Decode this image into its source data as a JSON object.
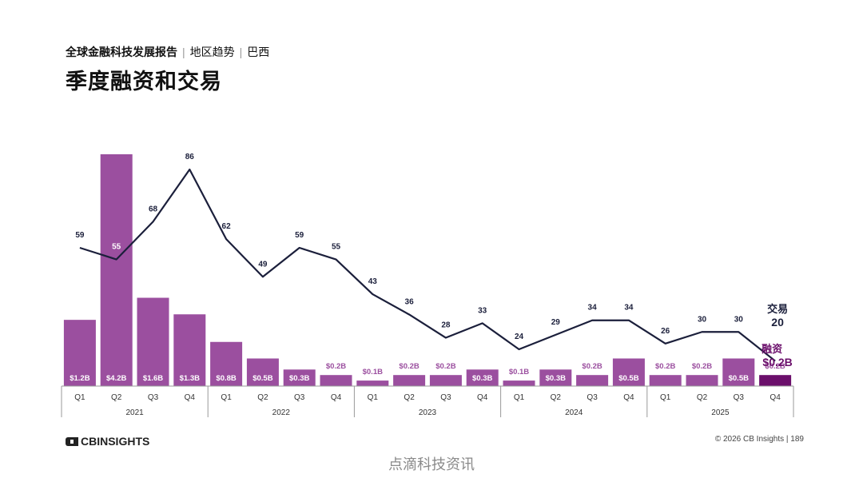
{
  "header": {
    "report": "全球金融科技发展报告",
    "section": "地区趋势",
    "region": "巴西",
    "separator": "|",
    "title": "季度融资和交易"
  },
  "footer": {
    "brand": "CBINSIGHTS",
    "copyright": "© 2026 CB Insights | 189",
    "watermark": "点滴科技资讯"
  },
  "colors": {
    "bar": "#9B4F9F",
    "bar_highlight": "#6B0F6B",
    "line": "#1B1F3B",
    "axis": "#999999"
  },
  "chart_data": {
    "type": "bar",
    "categories": [
      "Q1",
      "Q2",
      "Q3",
      "Q4",
      "Q1",
      "Q2",
      "Q3",
      "Q4",
      "Q1",
      "Q2",
      "Q3",
      "Q4",
      "Q1",
      "Q2",
      "Q3",
      "Q4",
      "Q1",
      "Q2",
      "Q3",
      "Q4"
    ],
    "groups": [
      {
        "label": "2021",
        "count": 4
      },
      {
        "label": "2022",
        "count": 4
      },
      {
        "label": "2023",
        "count": 4
      },
      {
        "label": "2024",
        "count": 4
      },
      {
        "label": "2025",
        "count": 4
      }
    ],
    "series": [
      {
        "name": "融资",
        "type": "bar",
        "unit": "$B",
        "values": [
          1.2,
          4.2,
          1.6,
          1.3,
          0.8,
          0.5,
          0.3,
          0.2,
          0.1,
          0.2,
          0.2,
          0.3,
          0.1,
          0.3,
          0.2,
          0.5,
          0.2,
          0.2,
          0.5,
          0.2
        ],
        "labels": [
          "$1.2B",
          "$4.2B",
          "$1.6B",
          "$1.3B",
          "$0.8B",
          "$0.5B",
          "$0.3B",
          "$0.2B",
          "$0.1B",
          "$0.2B",
          "$0.2B",
          "$0.3B",
          "$0.1B",
          "$0.3B",
          "$0.2B",
          "$0.5B",
          "$0.2B",
          "$0.2B",
          "$0.5B",
          "$0.2B"
        ]
      },
      {
        "name": "交易",
        "type": "line",
        "values": [
          59,
          55,
          68,
          86,
          62,
          49,
          59,
          55,
          43,
          36,
          28,
          33,
          24,
          29,
          34,
          34,
          26,
          30,
          30,
          20
        ]
      }
    ],
    "end_labels": {
      "deals_name": "交易",
      "deals_value": "20",
      "funding_name": "融资",
      "funding_value": "$0.2B"
    }
  }
}
